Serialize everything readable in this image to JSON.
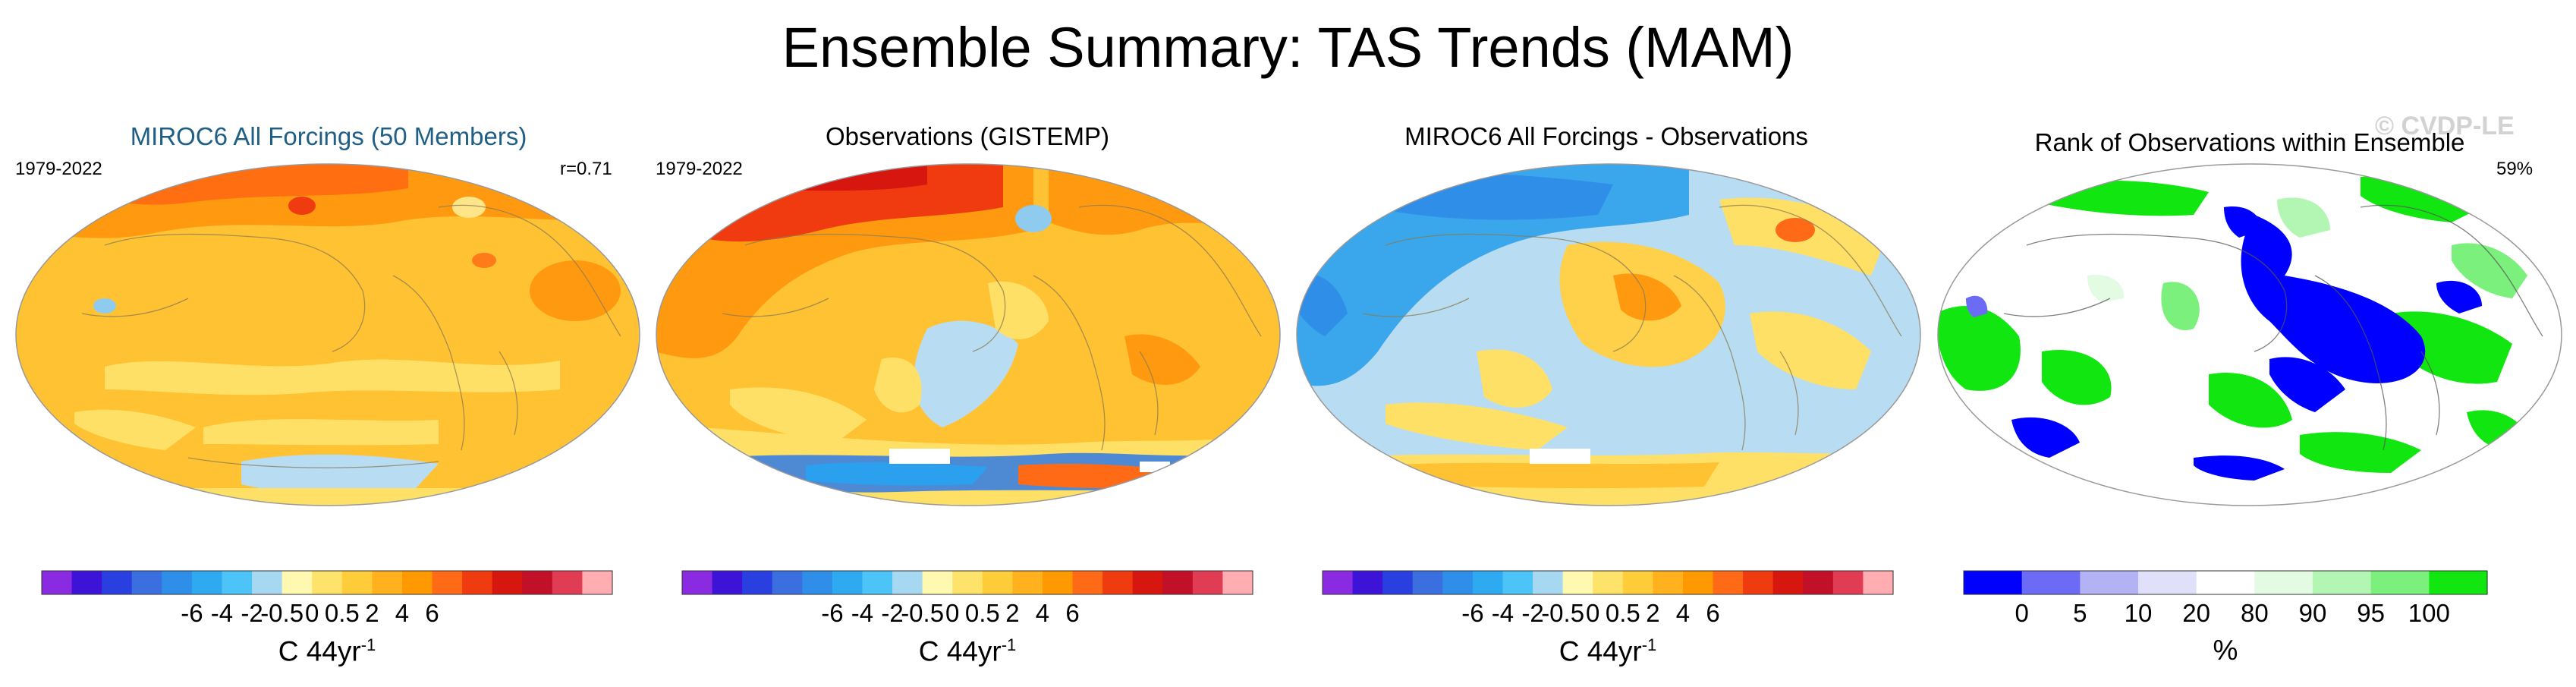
{
  "title": "Ensemble Summary: TAS Trends (MAM)",
  "watermark": "© CVDP-LE",
  "panels": [
    {
      "title": "MIROC6 All Forcings (50 Members)",
      "title_color": "#1f5f86",
      "left_label": "1979-2022",
      "right_label": "r=0.71"
    },
    {
      "title": "Observations (GISTEMP)",
      "title_color": "#000000",
      "left_label": "1979-2022",
      "right_label": ""
    },
    {
      "title": "MIROC6 All Forcings - Observations",
      "title_color": "#000000",
      "left_label": "",
      "right_label": ""
    },
    {
      "title": "Rank of Observations within Ensemble",
      "title_color": "#000000",
      "left_label": "",
      "right_label": "59%"
    }
  ],
  "trend_colorbar": {
    "colors": [
      "#8a2be2",
      "#3e13d8",
      "#2a3fe0",
      "#3b6fe0",
      "#2f8ee8",
      "#2eaaf0",
      "#4dc4f7",
      "#a7d8f2",
      "#fff8b0",
      "#fde36a",
      "#ffcc3a",
      "#ffb21e",
      "#ff9900",
      "#ff6a17",
      "#f03a10",
      "#d6160f",
      "#c21028",
      "#e03d55",
      "#ffadb0"
    ],
    "tick_labels": [
      "-6",
      "-4",
      "-2",
      "-0.5",
      "0",
      "0.5",
      "2",
      "4",
      "6"
    ],
    "unit_base": "C 44yr",
    "unit_exp": "-1"
  },
  "rank_colorbar": {
    "colors": [
      "#0000ff",
      "#6b6bf5",
      "#b2b2f5",
      "#e0e0fa",
      "#ffffff",
      "#e3fae3",
      "#b3f5b3",
      "#7cf07c",
      "#11e611"
    ],
    "tick_labels": [
      "0",
      "5",
      "10",
      "20",
      "80",
      "90",
      "95",
      "100"
    ],
    "unit": "%"
  }
}
